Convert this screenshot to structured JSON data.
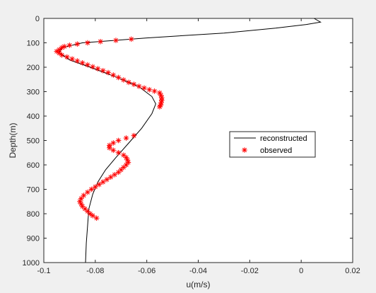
{
  "chart_data": {
    "type": "line",
    "xlabel": "u(m/s)",
    "ylabel": "Depth(m)",
    "xlim": [
      -0.1,
      0.02
    ],
    "ylim": [
      0,
      1000
    ],
    "y_reversed": true,
    "xticks": [
      -0.1,
      -0.08,
      -0.06,
      -0.04,
      -0.02,
      0,
      0.02
    ],
    "xtick_labels": [
      "-0.1",
      "-0.08",
      "-0.06",
      "-0.04",
      "-0.02",
      "0",
      "0.02"
    ],
    "yticks": [
      0,
      100,
      200,
      300,
      400,
      500,
      600,
      700,
      800,
      900,
      1000
    ],
    "ytick_labels": [
      "0",
      "100",
      "200",
      "300",
      "400",
      "500",
      "600",
      "700",
      "800",
      "900",
      "1000"
    ],
    "grid": false,
    "legend_position": "center-right",
    "series": [
      {
        "name": "reconstructed",
        "style": "line",
        "color": "#000000",
        "points": [
          [
            0.005,
            0
          ],
          [
            0.0075,
            15
          ],
          [
            0.002,
            25
          ],
          [
            -0.01,
            40
          ],
          [
            -0.03,
            60
          ],
          [
            -0.06,
            80
          ],
          [
            -0.085,
            100
          ],
          [
            -0.093,
            120
          ],
          [
            -0.094,
            140
          ],
          [
            -0.09,
            170
          ],
          [
            -0.082,
            200
          ],
          [
            -0.072,
            240
          ],
          [
            -0.063,
            280
          ],
          [
            -0.058,
            320
          ],
          [
            -0.0565,
            350
          ],
          [
            -0.058,
            390
          ],
          [
            -0.062,
            450
          ],
          [
            -0.067,
            510
          ],
          [
            -0.072,
            570
          ],
          [
            -0.076,
            620
          ],
          [
            -0.079,
            670
          ],
          [
            -0.081,
            720
          ],
          [
            -0.0825,
            780
          ],
          [
            -0.083,
            850
          ],
          [
            -0.0835,
            920
          ],
          [
            -0.0838,
            1000
          ]
        ]
      },
      {
        "name": "observed",
        "style": "marker",
        "marker": "*",
        "color": "#ff0000",
        "points": [
          [
            -0.066,
            85
          ],
          [
            -0.072,
            90
          ],
          [
            -0.078,
            95
          ],
          [
            -0.083,
            100
          ],
          [
            -0.087,
            105
          ],
          [
            -0.09,
            110
          ],
          [
            -0.092,
            115
          ],
          [
            -0.093,
            120
          ],
          [
            -0.094,
            128
          ],
          [
            -0.095,
            135
          ],
          [
            -0.094,
            142
          ],
          [
            -0.093,
            150
          ],
          [
            -0.091,
            158
          ],
          [
            -0.089,
            166
          ],
          [
            -0.087,
            174
          ],
          [
            -0.085,
            182
          ],
          [
            -0.083,
            190
          ],
          [
            -0.081,
            198
          ],
          [
            -0.079,
            206
          ],
          [
            -0.077,
            214
          ],
          [
            -0.075,
            222
          ],
          [
            -0.073,
            232
          ],
          [
            -0.071,
            242
          ],
          [
            -0.069,
            252
          ],
          [
            -0.067,
            262
          ],
          [
            -0.065,
            270
          ],
          [
            -0.063,
            278
          ],
          [
            -0.061,
            285
          ],
          [
            -0.059,
            292
          ],
          [
            -0.057,
            298
          ],
          [
            -0.055,
            305
          ],
          [
            -0.0545,
            315
          ],
          [
            -0.0542,
            325
          ],
          [
            -0.0542,
            335
          ],
          [
            -0.0544,
            345
          ],
          [
            -0.0546,
            355
          ],
          [
            -0.055,
            362
          ],
          [
            -0.065,
            480
          ],
          [
            -0.068,
            490
          ],
          [
            -0.071,
            500
          ],
          [
            -0.073,
            510
          ],
          [
            -0.0745,
            520
          ],
          [
            -0.0745,
            530
          ],
          [
            -0.073,
            540
          ],
          [
            -0.071,
            550
          ],
          [
            -0.069,
            560
          ],
          [
            -0.068,
            570
          ],
          [
            -0.0675,
            580
          ],
          [
            -0.0672,
            590
          ],
          [
            -0.068,
            600
          ],
          [
            -0.069,
            610
          ],
          [
            -0.07,
            620
          ],
          [
            -0.071,
            630
          ],
          [
            -0.0725,
            640
          ],
          [
            -0.074,
            650
          ],
          [
            -0.0755,
            660
          ],
          [
            -0.077,
            670
          ],
          [
            -0.0785,
            680
          ],
          [
            -0.08,
            690
          ],
          [
            -0.0815,
            700
          ],
          [
            -0.083,
            712
          ],
          [
            -0.0845,
            725
          ],
          [
            -0.0855,
            738
          ],
          [
            -0.086,
            750
          ],
          [
            -0.0855,
            760
          ],
          [
            -0.085,
            770
          ],
          [
            -0.084,
            780
          ],
          [
            -0.083,
            790
          ],
          [
            -0.082,
            800
          ],
          [
            -0.081,
            808
          ],
          [
            -0.0795,
            818
          ]
        ]
      }
    ]
  }
}
